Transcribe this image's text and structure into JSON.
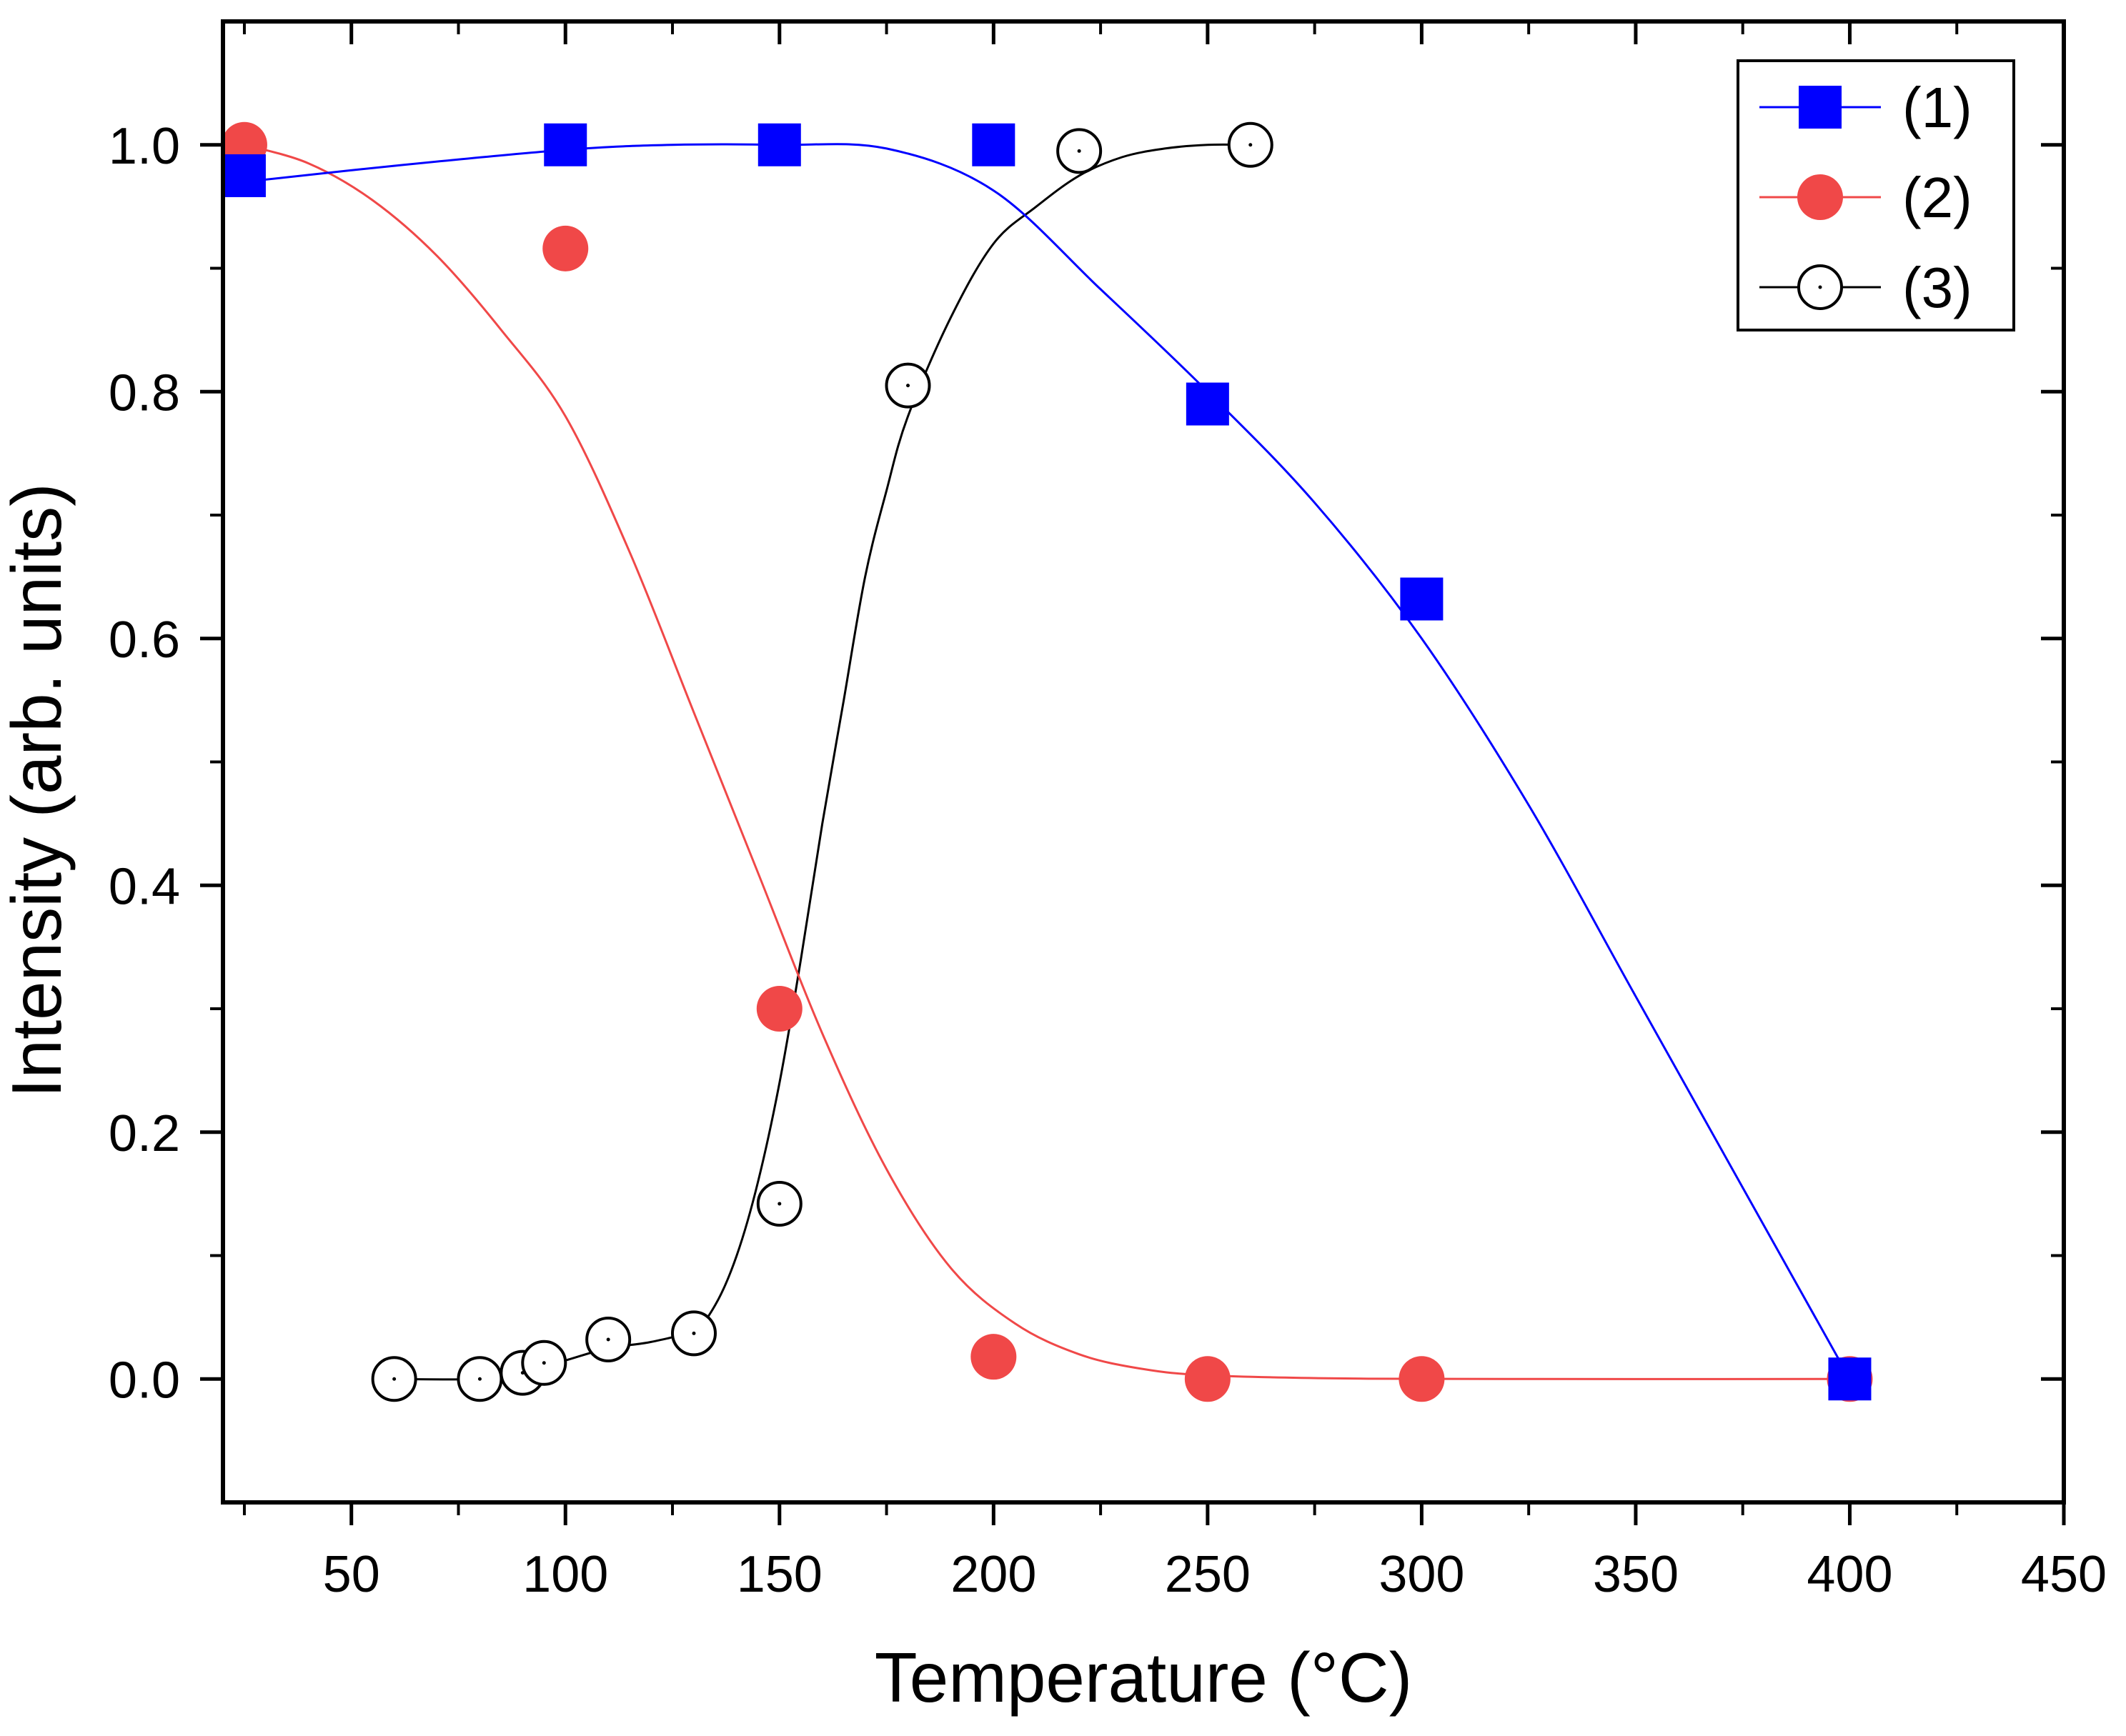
{
  "chart_data": {
    "type": "scatter",
    "title": "",
    "xlabel": "Temperature (°C)",
    "ylabel": "Intensity (arb. units)",
    "xlim": [
      20,
      450
    ],
    "ylim": [
      -0.1,
      1.1
    ],
    "x_ticks": [
      50,
      100,
      150,
      200,
      250,
      300,
      350,
      400,
      450
    ],
    "x_tick_labels": [
      "50",
      "100",
      "150",
      "200",
      "250",
      "300",
      "350",
      "400",
      "450"
    ],
    "y_ticks": [
      0.0,
      0.2,
      0.4,
      0.6,
      0.8,
      1.0
    ],
    "y_tick_labels": [
      "0.0",
      "0.2",
      "0.4",
      "0.6",
      "0.8",
      "1.0"
    ],
    "grid": false,
    "legend_position": "top-right",
    "series": [
      {
        "name": "(1)",
        "marker": "filled-square",
        "color": "#0000ff",
        "x": [
          25,
          100,
          150,
          200,
          250,
          300,
          400
        ],
        "y": [
          0.975,
          1.0,
          1.0,
          1.0,
          0.79,
          0.632,
          0.0
        ],
        "fit_x": [
          25,
          60,
          100,
          125,
          150,
          175,
          200,
          225,
          250,
          275,
          300,
          325,
          350,
          375,
          400
        ],
        "fit_y": [
          0.97,
          0.983,
          0.996,
          1.0,
          1.0,
          0.997,
          0.963,
          0.883,
          0.8,
          0.71,
          0.6,
          0.465,
          0.31,
          0.155,
          0.0
        ]
      },
      {
        "name": "(2)",
        "marker": "filled-circle",
        "color": "#f04848",
        "x": [
          25,
          100,
          150,
          200,
          250,
          300,
          400
        ],
        "y": [
          1.0,
          0.916,
          0.3,
          0.018,
          0.0,
          0.0,
          0.0
        ],
        "fit_x": [
          25,
          40,
          55,
          70,
          85,
          100,
          115,
          130,
          145,
          160,
          175,
          190,
          205,
          220,
          235,
          250,
          280,
          320,
          400
        ],
        "fit_y": [
          1.0,
          0.985,
          0.955,
          0.91,
          0.85,
          0.78,
          0.67,
          0.54,
          0.41,
          0.28,
          0.17,
          0.09,
          0.045,
          0.02,
          0.008,
          0.003,
          0.0005,
          0.0,
          0.0
        ]
      },
      {
        "name": "(3)",
        "marker": "open-circle",
        "color": "#000000",
        "x": [
          60,
          80,
          90,
          95,
          110,
          130,
          150,
          180,
          220,
          260
        ],
        "y": [
          0.0,
          0.0,
          0.005,
          0.013,
          0.032,
          0.037,
          0.142,
          0.805,
          0.995,
          1.0
        ],
        "fit_x": [
          60,
          80,
          90,
          100,
          110,
          120,
          130,
          135,
          140,
          145,
          150,
          155,
          160,
          165,
          170,
          175,
          180,
          190,
          200,
          210,
          220,
          230,
          240,
          250,
          260
        ],
        "fit_y": [
          0.0,
          0.0,
          0.005,
          0.015,
          0.025,
          0.03,
          0.04,
          0.06,
          0.1,
          0.16,
          0.24,
          0.34,
          0.45,
          0.55,
          0.65,
          0.72,
          0.78,
          0.86,
          0.92,
          0.95,
          0.975,
          0.99,
          0.997,
          1.0,
          1.0
        ]
      }
    ]
  }
}
